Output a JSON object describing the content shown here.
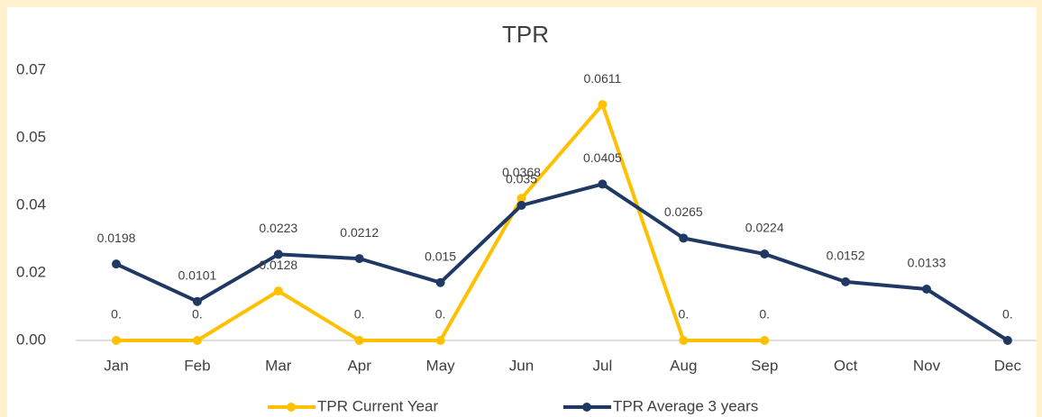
{
  "chart_data": {
    "type": "line",
    "title": "TPR",
    "categories": [
      "Jan",
      "Feb",
      "Mar",
      "Apr",
      "May",
      "Jun",
      "Jul",
      "Aug",
      "Sep",
      "Oct",
      "Nov",
      "Dec"
    ],
    "series": [
      {
        "name": "TPR Current Year",
        "color": "#ffc000",
        "values": [
          0,
          0,
          0.0128,
          0,
          0,
          0.0368,
          0.0611,
          0,
          0,
          null,
          null,
          null
        ],
        "value_labels": [
          "0.",
          "0.",
          "0.0128",
          "0.",
          "0.",
          "0.0368",
          "0.0611",
          "0.",
          "0.",
          null,
          null,
          null
        ]
      },
      {
        "name": "TPR Average 3 years",
        "color": "#203864",
        "values": [
          0.0198,
          0.0101,
          0.0223,
          0.0212,
          0.015,
          0.035,
          0.0405,
          0.0265,
          0.0224,
          0.0152,
          0.0133,
          0
        ],
        "value_labels": [
          "0.0198",
          "0.0101",
          "0.0223",
          "0.0212",
          "0.015",
          "0.035",
          "0.0405",
          "0.0265",
          "0.0224",
          "0.0152",
          "0.0133",
          "0."
        ]
      }
    ],
    "ylim": [
      0,
      0.07
    ],
    "yticks": [
      {
        "value": 0,
        "label": "0.00"
      },
      {
        "value": 0.0175,
        "label": "0.02"
      },
      {
        "value": 0.035,
        "label": "0.04"
      },
      {
        "value": 0.0525,
        "label": "0.05"
      },
      0.07
    ],
    "grid": false,
    "legend": "bottom"
  }
}
